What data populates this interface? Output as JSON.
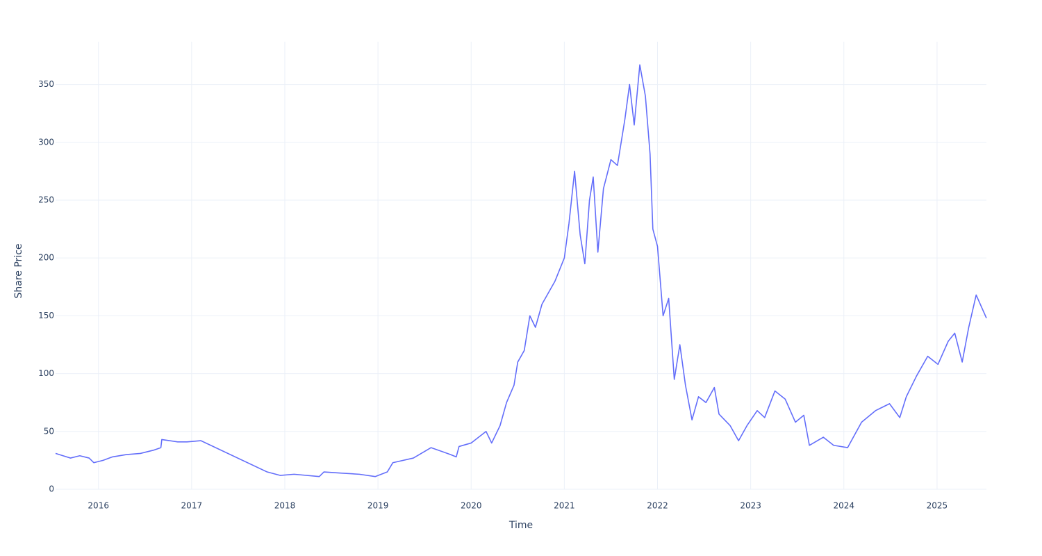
{
  "chart_data": {
    "type": "line",
    "x_label": "Time",
    "y_label": "Share Price",
    "xlim": [
      2015.54,
      2025.53
    ],
    "ylim": [
      0,
      387
    ],
    "xticks": [
      2016,
      2017,
      2018,
      2019,
      2020,
      2021,
      2022,
      2023,
      2024,
      2025
    ],
    "yticks": [
      0,
      50,
      100,
      150,
      200,
      250,
      300,
      350
    ],
    "grid": true,
    "series": [
      {
        "name": "Share Price",
        "color": "#636efa",
        "x": [
          2015.54,
          2015.62,
          2015.7,
          2015.8,
          2015.9,
          2015.95,
          2016.05,
          2016.15,
          2016.3,
          2016.45,
          2016.6,
          2016.67,
          2016.68,
          2016.85,
          2016.95,
          2017.1,
          2017.81,
          2017.95,
          2018.1,
          2018.37,
          2018.42,
          2018.6,
          2018.8,
          2018.97,
          2019.1,
          2019.16,
          2019.38,
          2019.57,
          2019.78,
          2019.84,
          2019.87,
          2020.0,
          2020.16,
          2020.22,
          2020.31,
          2020.38,
          2020.46,
          2020.5,
          2020.57,
          2020.63,
          2020.69,
          2020.76,
          2020.83,
          2020.9,
          2021.0,
          2021.05,
          2021.11,
          2021.17,
          2021.22,
          2021.27,
          2021.31,
          2021.36,
          2021.42,
          2021.5,
          2021.57,
          2021.65,
          2021.7,
          2021.75,
          2021.81,
          2021.87,
          2021.92,
          2021.95,
          2022.0,
          2022.06,
          2022.12,
          2022.18,
          2022.24,
          2022.3,
          2022.37,
          2022.44,
          2022.52,
          2022.61,
          2022.66,
          2022.78,
          2022.87,
          2022.96,
          2023.07,
          2023.15,
          2023.26,
          2023.37,
          2023.48,
          2023.57,
          2023.63,
          2023.78,
          2023.89,
          2024.04,
          2024.19,
          2024.34,
          2024.49,
          2024.6,
          2024.67,
          2024.78,
          2024.9,
          2025.01,
          2025.12,
          2025.19,
          2025.27,
          2025.34,
          2025.42,
          2025.53
        ],
        "values": [
          31,
          29,
          27,
          29,
          27,
          23,
          25,
          28,
          30,
          31,
          34,
          36,
          43,
          41,
          41,
          42,
          15,
          12,
          13,
          11,
          15,
          14,
          13,
          11,
          15,
          23,
          27,
          36,
          30,
          28,
          37,
          40,
          50,
          40,
          55,
          75,
          90,
          110,
          120,
          150,
          140,
          160,
          170,
          180,
          200,
          230,
          275,
          220,
          195,
          250,
          270,
          205,
          260,
          285,
          280,
          320,
          350,
          315,
          367,
          340,
          290,
          225,
          210,
          150,
          165,
          95,
          125,
          90,
          60,
          80,
          75,
          88,
          65,
          55,
          42,
          55,
          68,
          62,
          85,
          78,
          58,
          64,
          38,
          45,
          38,
          36,
          58,
          68,
          74,
          62,
          80,
          98,
          115,
          108,
          128,
          135,
          110,
          140,
          168,
          148
        ]
      }
    ]
  }
}
